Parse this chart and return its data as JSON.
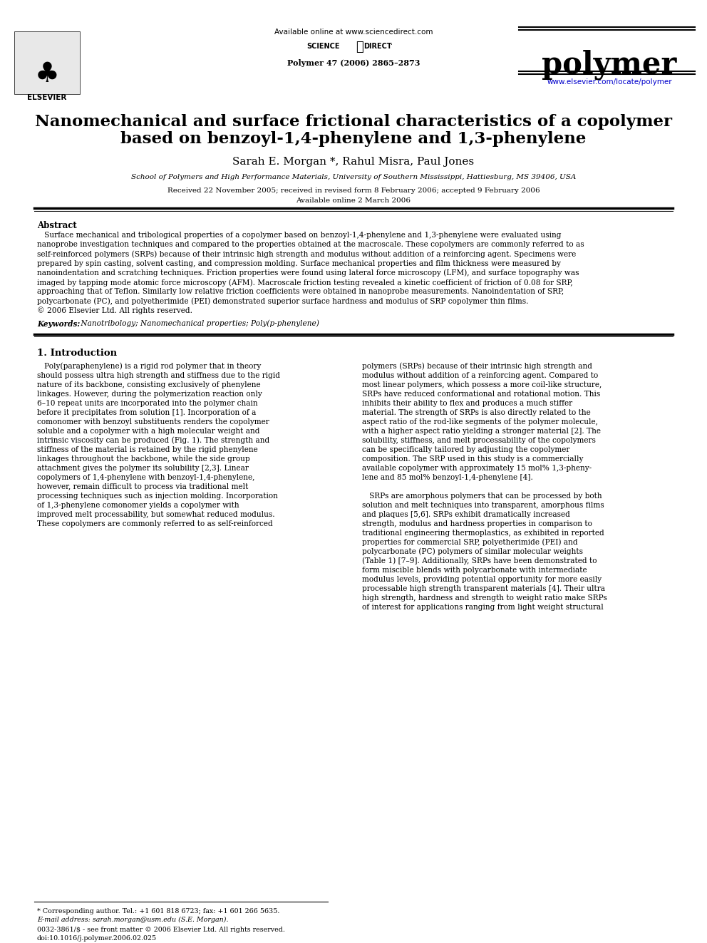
{
  "bg_color": "#ffffff",
  "header_available": "Available online at www.sciencedirect.com",
  "journal_info": "Polymer 47 (2006) 2865–2873",
  "journal_name": "polymer",
  "journal_url": "www.elsevier.com/locate/polymer",
  "elsevier_label": "ELSEVIER",
  "paper_title_line1": "Nanomechanical and surface frictional characteristics of a copolymer",
  "paper_title_line2": "based on benzoyl-1,4-phenylene and 1,3-phenylene",
  "authors": "Sarah E. Morgan *, Rahul Misra, Paul Jones",
  "affiliation": "School of Polymers and High Performance Materials, University of Southern Mississippi, Hattiesburg, MS 39406, USA",
  "dates": "Received 22 November 2005; received in revised form 8 February 2006; accepted 9 February 2006",
  "available_online": "Available online 2 March 2006",
  "abstract_title": "Abstract",
  "keywords_label": "Keywords:",
  "keywords_text": " Nanotribology; Nanomechanical properties; Poly(p-phenylene)",
  "section1_title": "1. Introduction",
  "footnote_star": "* Corresponding author. Tel.: +1 601 818 6723; fax: +1 601 266 5635.",
  "footnote_email": "E-mail address: sarah.morgan@usm.edu (S.E. Morgan).",
  "footnote_issn": "0032-3861/$ - see front matter © 2006 Elsevier Ltd. All rights reserved.",
  "footnote_doi": "doi:10.1016/j.polymer.2006.02.025",
  "abstract_lines": [
    "   Surface mechanical and tribological properties of a copolymer based on benzoyl-1,4-phenylene and 1,3-phenylene were evaluated using",
    "nanoprobe investigation techniques and compared to the properties obtained at the macroscale. These copolymers are commonly referred to as",
    "self-reinforced polymers (SRPs) because of their intrinsic high strength and modulus without addition of a reinforcing agent. Specimens were",
    "prepared by spin casting, solvent casting, and compression molding. Surface mechanical properties and film thickness were measured by",
    "nanoindentation and scratching techniques. Friction properties were found using lateral force microscopy (LFM), and surface topography was",
    "imaged by tapping mode atomic force microscopy (AFM). Macroscale friction testing revealed a kinetic coefficient of friction of 0.08 for SRP,",
    "approaching that of Teflon. Similarly low relative friction coefficients were obtained in nanoprobe measurements. Nanoindentation of SRP,",
    "polycarbonate (PC), and polyetherimide (PEI) demonstrated superior surface hardness and modulus of SRP copolymer thin films.",
    "© 2006 Elsevier Ltd. All rights reserved."
  ],
  "col1_lines": [
    "   Poly(paraphenylene) is a rigid rod polymer that in theory",
    "should possess ultra high strength and stiffness due to the rigid",
    "nature of its backbone, consisting exclusively of phenylene",
    "linkages. However, during the polymerization reaction only",
    "6–10 repeat units are incorporated into the polymer chain",
    "before it precipitates from solution [1]. Incorporation of a",
    "comonomer with benzoyl substituents renders the copolymer",
    "soluble and a copolymer with a high molecular weight and",
    "intrinsic viscosity can be produced (Fig. 1). The strength and",
    "stiffness of the material is retained by the rigid phenylene",
    "linkages throughout the backbone, while the side group",
    "attachment gives the polymer its solubility [2,3]. Linear",
    "copolymers of 1,4-phenylene with benzoyl-1,4-phenylene,",
    "however, remain difficult to process via traditional melt",
    "processing techniques such as injection molding. Incorporation",
    "of 1,3-phenylene comonomer yields a copolymer with",
    "improved melt processability, but somewhat reduced modulus.",
    "These copolymers are commonly referred to as self-reinforced"
  ],
  "col2_lines": [
    "polymers (SRPs) because of their intrinsic high strength and",
    "modulus without addition of a reinforcing agent. Compared to",
    "most linear polymers, which possess a more coil-like structure,",
    "SRPs have reduced conformational and rotational motion. This",
    "inhibits their ability to flex and produces a much stiffer",
    "material. The strength of SRPs is also directly related to the",
    "aspect ratio of the rod-like segments of the polymer molecule,",
    "with a higher aspect ratio yielding a stronger material [2]. The",
    "solubility, stiffness, and melt processability of the copolymers",
    "can be specifically tailored by adjusting the copolymer",
    "composition. The SRP used in this study is a commercially",
    "available copolymer with approximately 15 mol% 1,3-pheny-",
    "lene and 85 mol% benzoyl-1,4-phenylene [4].",
    "",
    "   SRPs are amorphous polymers that can be processed by both",
    "solution and melt techniques into transparent, amorphous films",
    "and plaques [5,6]. SRPs exhibit dramatically increased",
    "strength, modulus and hardness properties in comparison to",
    "traditional engineering thermoplastics, as exhibited in reported",
    "properties for commercial SRP, polyetherimide (PEI) and",
    "polycarbonate (PC) polymers of similar molecular weights",
    "(Table 1) [7–9]. Additionally, SRPs have been demonstrated to",
    "form miscible blends with polycarbonate with intermediate",
    "modulus levels, providing potential opportunity for more easily",
    "processable high strength transparent materials [4]. Their ultra",
    "high strength, hardness and strength to weight ratio make SRPs",
    "of interest for applications ranging from light weight structural"
  ]
}
